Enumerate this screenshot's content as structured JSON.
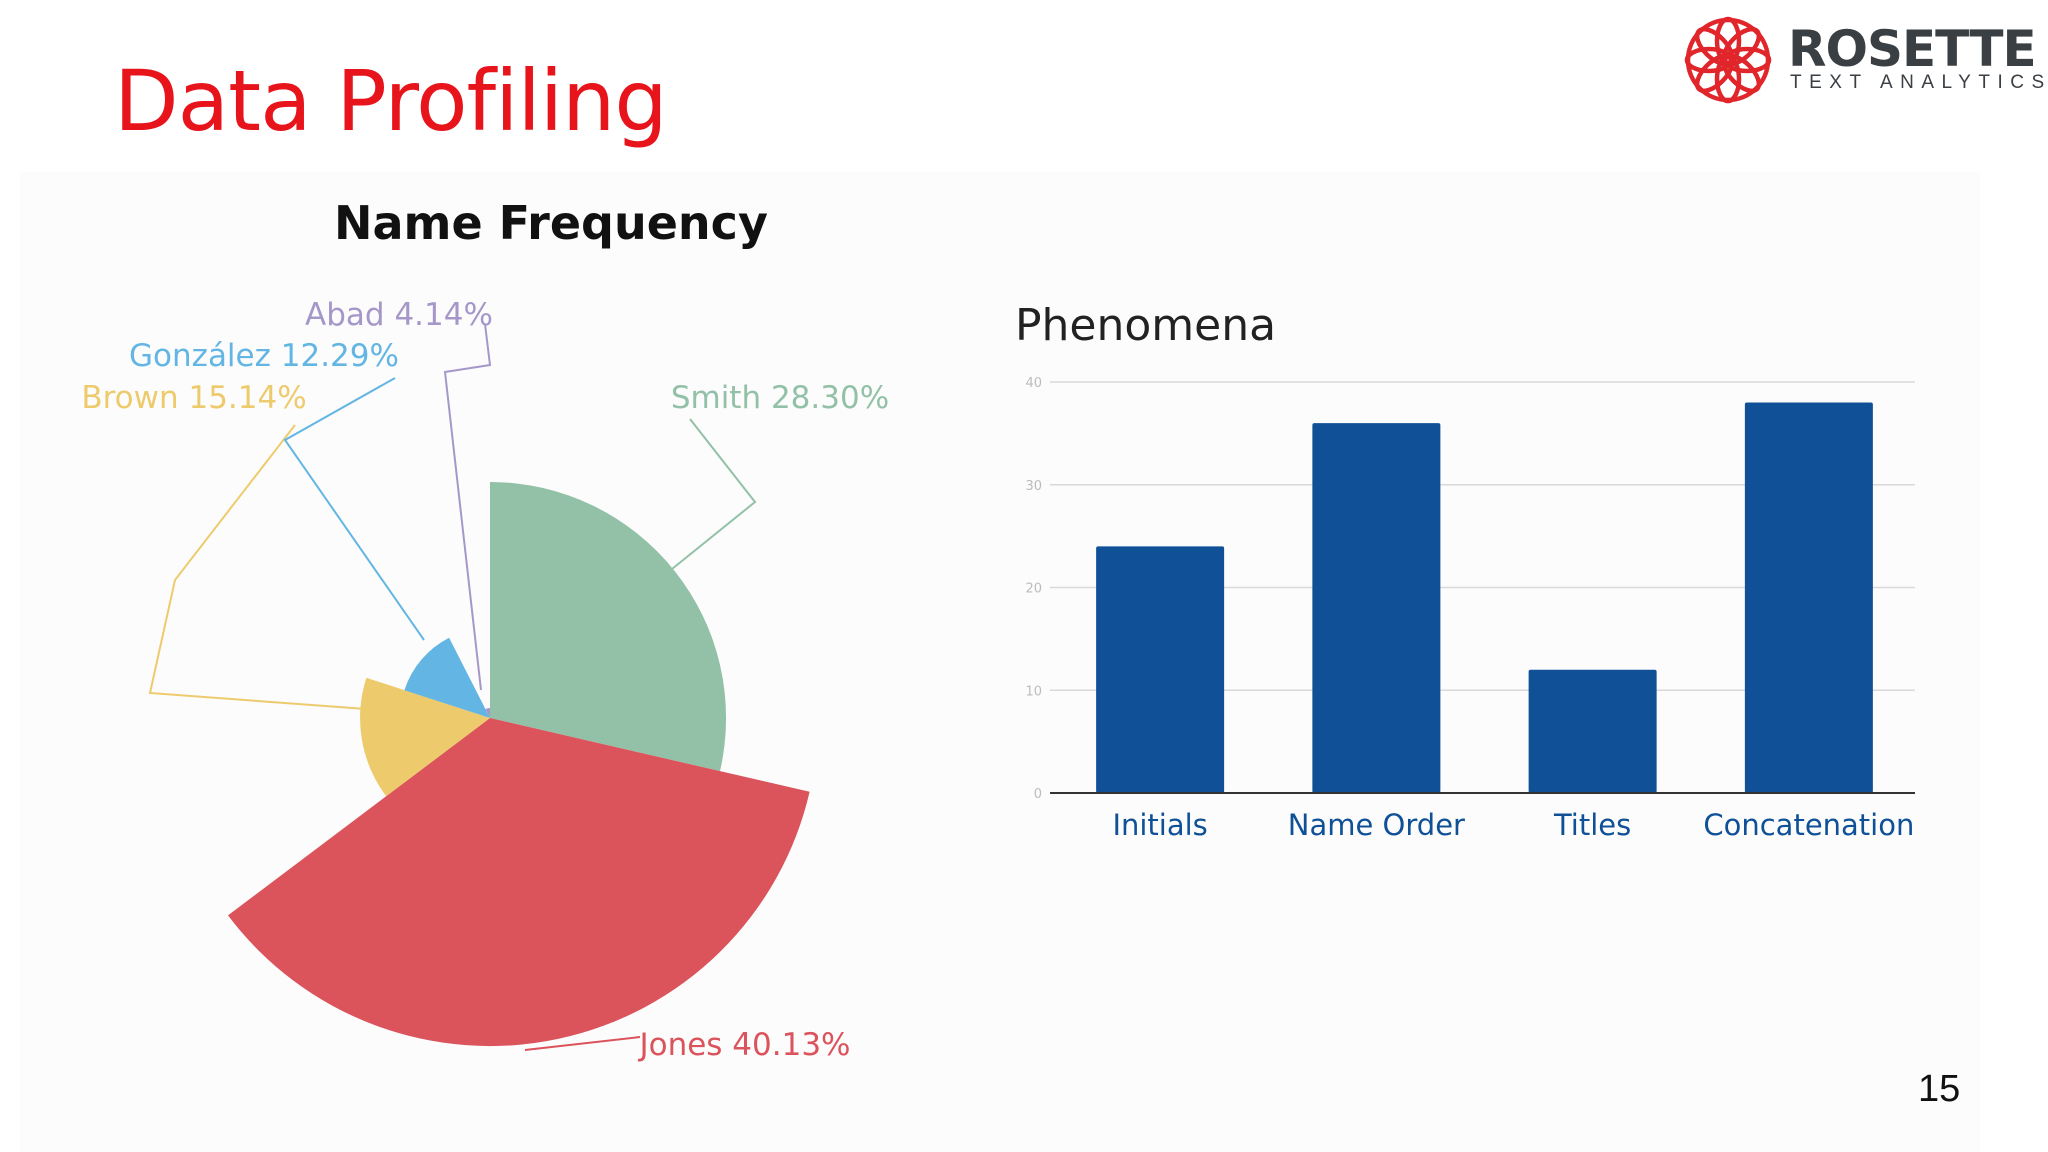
{
  "slide": {
    "title": "Data Profiling",
    "page_number": "15"
  },
  "logo": {
    "name": "ROSETTE",
    "tagline": "TEXT ANALYTICS",
    "accent_color": "#e0252b"
  },
  "chart_data": [
    {
      "type": "pie",
      "title": "Name Frequency",
      "slices": [
        {
          "label": "Smith",
          "value": 28.3,
          "display": "Smith 28.30%",
          "color": "#93c1a8"
        },
        {
          "label": "Jones",
          "value": 40.13,
          "display": "Jones 40.13%",
          "color": "#db535b"
        },
        {
          "label": "Brown",
          "value": 15.14,
          "display": "Brown 15.14%",
          "color": "#edcb6d"
        },
        {
          "label": "González",
          "value": 12.29,
          "display": "González 12.29%",
          "color": "#63b6e3"
        },
        {
          "label": "Abad",
          "value": 4.14,
          "display": "Abad 4.14%",
          "color": "#a697c9"
        }
      ]
    },
    {
      "type": "bar",
      "title": "Phenomena",
      "categories": [
        "Initials",
        "Name Order",
        "Titles",
        "Concatenation"
      ],
      "values": [
        24,
        36,
        12,
        38
      ],
      "ylim": [
        0,
        40
      ],
      "yticks": [
        "0",
        "10",
        "20",
        "30",
        "40"
      ],
      "bar_color": "#0f5097",
      "grid": true
    }
  ]
}
